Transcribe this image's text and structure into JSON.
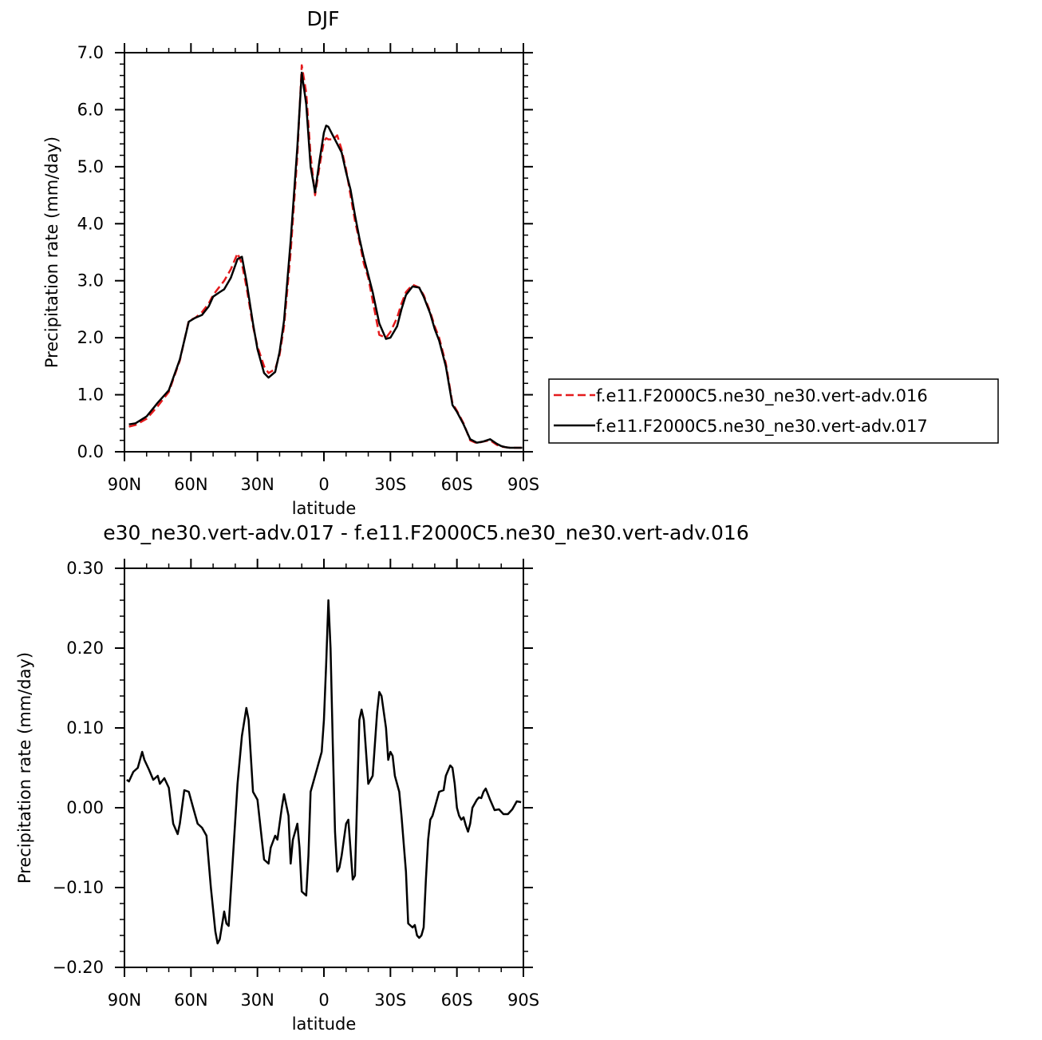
{
  "chart_data": [
    {
      "type": "line",
      "title": "DJF",
      "xlabel": "latitude",
      "ylabel": "Precipitation rate (mm/day)",
      "xlim": [
        90,
        -90
      ],
      "ylim": [
        0,
        7
      ],
      "xticks": [
        {
          "value": 90,
          "label": "90N"
        },
        {
          "value": 60,
          "label": "60N"
        },
        {
          "value": 30,
          "label": "30N"
        },
        {
          "value": 0,
          "label": "0"
        },
        {
          "value": -30,
          "label": "30S"
        },
        {
          "value": -60,
          "label": "60S"
        },
        {
          "value": -90,
          "label": "90S"
        }
      ],
      "yticks": [
        {
          "value": 0,
          "label": "0.0"
        },
        {
          "value": 1,
          "label": "1.0"
        },
        {
          "value": 2,
          "label": "2.0"
        },
        {
          "value": 3,
          "label": "3.0"
        },
        {
          "value": 4,
          "label": "4.0"
        },
        {
          "value": 5,
          "label": "5.0"
        },
        {
          "value": 6,
          "label": "6.0"
        },
        {
          "value": 7,
          "label": "7.0"
        }
      ],
      "legend_position": "right",
      "series": [
        {
          "name": "f.e11.F2000C5.ne30_ne30.vert-adv.016",
          "color": "#e41a1c",
          "dash": "dashed",
          "x": [
            88,
            85,
            80,
            75,
            70,
            65,
            61,
            58,
            55,
            52,
            50,
            47,
            45,
            42,
            39,
            37,
            35,
            32,
            30,
            27,
            25,
            22,
            20,
            18,
            15,
            12,
            10,
            8,
            6,
            4,
            2,
            0,
            -1,
            -2,
            -4,
            -6,
            -8,
            -10,
            -12,
            -14,
            -16,
            -18,
            -20,
            -22,
            -25,
            -28,
            -30,
            -33,
            -35,
            -37,
            -40,
            -43,
            -45,
            -48,
            -50,
            -52,
            -55,
            -58,
            -60,
            -63,
            -66,
            -69,
            -72,
            -75,
            -78,
            -80,
            -82,
            -84,
            -86,
            -88,
            -89.5
          ],
          "y": [
            0.44,
            0.47,
            0.58,
            0.8,
            1.05,
            1.6,
            2.3,
            2.35,
            2.45,
            2.6,
            2.75,
            2.9,
            3.0,
            3.2,
            3.48,
            3.3,
            2.9,
            2.2,
            1.85,
            1.5,
            1.38,
            1.45,
            1.7,
            2.2,
            3.5,
            5.2,
            6.78,
            6.3,
            5.2,
            4.5,
            5.0,
            5.45,
            5.5,
            5.48,
            5.48,
            5.55,
            5.3,
            4.95,
            4.5,
            4.05,
            3.7,
            3.3,
            3.05,
            2.65,
            2.05,
            2.0,
            2.1,
            2.35,
            2.6,
            2.8,
            2.93,
            2.88,
            2.75,
            2.45,
            2.2,
            2.0,
            1.55,
            0.85,
            0.72,
            0.5,
            0.2,
            0.15,
            0.18,
            0.2,
            0.12,
            0.09,
            0.08,
            0.07,
            0.07,
            0.07,
            0.07
          ]
        },
        {
          "name": "f.e11.F2000C5.ne30_ne30.vert-adv.017",
          "color": "#000000",
          "dash": "solid",
          "x": [
            88,
            85,
            80,
            75,
            70,
            65,
            61,
            58,
            55,
            52,
            50,
            47,
            45,
            42,
            39,
            37,
            35,
            32,
            30,
            27,
            25,
            22,
            20,
            18,
            15,
            12,
            10,
            8,
            6,
            4,
            2,
            0,
            -1,
            -2,
            -4,
            -6,
            -8,
            -10,
            -12,
            -14,
            -16,
            -18,
            -20,
            -22,
            -25,
            -28,
            -30,
            -33,
            -35,
            -37,
            -40,
            -43,
            -45,
            -48,
            -50,
            -52,
            -55,
            -58,
            -60,
            -63,
            -66,
            -69,
            -72,
            -75,
            -78,
            -80,
            -82,
            -84,
            -86,
            -88,
            -89.5
          ],
          "y": [
            0.48,
            0.5,
            0.62,
            0.86,
            1.08,
            1.62,
            2.28,
            2.35,
            2.4,
            2.55,
            2.72,
            2.8,
            2.85,
            3.05,
            3.38,
            3.42,
            3.0,
            2.25,
            1.8,
            1.38,
            1.3,
            1.4,
            1.75,
            2.3,
            3.7,
            5.35,
            6.65,
            6.1,
            5.0,
            4.55,
            5.1,
            5.6,
            5.72,
            5.7,
            5.55,
            5.4,
            5.25,
            4.9,
            4.6,
            4.15,
            3.75,
            3.4,
            3.1,
            2.8,
            2.25,
            1.98,
            2.0,
            2.2,
            2.5,
            2.75,
            2.9,
            2.88,
            2.72,
            2.42,
            2.15,
            1.95,
            1.5,
            0.82,
            0.7,
            0.48,
            0.22,
            0.16,
            0.18,
            0.22,
            0.14,
            0.1,
            0.08,
            0.07,
            0.07,
            0.07,
            0.07
          ]
        }
      ]
    },
    {
      "type": "line",
      "title": "e30_ne30.vert-adv.017 - f.e11.F2000C5.ne30_ne30.vert-adv.016",
      "xlabel": "latitude",
      "ylabel": "Precipitation rate (mm/day)",
      "xlim": [
        90,
        -90
      ],
      "ylim": [
        -0.2,
        0.3
      ],
      "xticks": [
        {
          "value": 90,
          "label": "90N"
        },
        {
          "value": 60,
          "label": "60N"
        },
        {
          "value": 30,
          "label": "30N"
        },
        {
          "value": 0,
          "label": "0"
        },
        {
          "value": -30,
          "label": "30S"
        },
        {
          "value": -60,
          "label": "60S"
        },
        {
          "value": -90,
          "label": "90S"
        }
      ],
      "yticks": [
        {
          "value": -0.2,
          "label": "−0.20"
        },
        {
          "value": -0.1,
          "label": "−0.10"
        },
        {
          "value": 0,
          "label": "0.00"
        },
        {
          "value": 0.1,
          "label": "0.10"
        },
        {
          "value": 0.2,
          "label": "0.20"
        },
        {
          "value": 0.3,
          "label": "0.30"
        }
      ],
      "series": [
        {
          "color": "#000000",
          "dash": "solid",
          "x": [
            89,
            88,
            86,
            84,
            82,
            81,
            79,
            77,
            75,
            74,
            72,
            70,
            68,
            66,
            65,
            63,
            61,
            59,
            57,
            55,
            53,
            51,
            49,
            48,
            47,
            45,
            44,
            43,
            41,
            39,
            37,
            35,
            34,
            32,
            31,
            30,
            28,
            27,
            25,
            24,
            22,
            21,
            19,
            18,
            16,
            15,
            14,
            12,
            11,
            10,
            8,
            7,
            6,
            4,
            3,
            1,
            0,
            -1,
            -2,
            -3,
            -4,
            -5,
            -6,
            -7,
            -8,
            -9,
            -10,
            -11,
            -13,
            -14,
            -16,
            -17,
            -18,
            -20,
            -22,
            -24,
            -25,
            -26,
            -28,
            -29,
            -30,
            -31,
            -32,
            -34,
            -35,
            -37,
            -38,
            -40,
            -41,
            -42,
            -43,
            -44,
            -45,
            -46,
            -47,
            -48,
            -49,
            -50,
            -52,
            -54,
            -55,
            -57,
            -58,
            -59,
            -60,
            -61,
            -62,
            -63,
            -64,
            -65,
            -66,
            -67,
            -69,
            -70,
            -71,
            -72,
            -73,
            -75,
            -77,
            -79,
            -81,
            -83,
            -85,
            -87,
            -89
          ],
          "y": [
            0.035,
            0.033,
            0.045,
            0.05,
            0.07,
            0.06,
            0.048,
            0.035,
            0.04,
            0.03,
            0.037,
            0.025,
            -0.02,
            -0.033,
            -0.02,
            0.022,
            0.02,
            0.0,
            -0.02,
            -0.025,
            -0.035,
            -0.1,
            -0.155,
            -0.17,
            -0.165,
            -0.13,
            -0.145,
            -0.148,
            -0.06,
            0.03,
            0.09,
            0.125,
            0.11,
            0.02,
            0.015,
            0.01,
            -0.04,
            -0.065,
            -0.07,
            -0.05,
            -0.035,
            -0.04,
            0.0,
            0.017,
            -0.01,
            -0.07,
            -0.04,
            -0.02,
            -0.05,
            -0.105,
            -0.11,
            -0.06,
            0.02,
            0.04,
            0.05,
            0.07,
            0.11,
            0.18,
            0.26,
            0.2,
            0.08,
            -0.03,
            -0.08,
            -0.075,
            -0.06,
            -0.04,
            -0.02,
            -0.015,
            -0.09,
            -0.085,
            0.11,
            0.123,
            0.11,
            0.03,
            0.04,
            0.12,
            0.145,
            0.14,
            0.1,
            0.06,
            0.07,
            0.065,
            0.04,
            0.02,
            -0.01,
            -0.08,
            -0.145,
            -0.15,
            -0.147,
            -0.16,
            -0.163,
            -0.16,
            -0.15,
            -0.09,
            -0.04,
            -0.015,
            -0.01,
            0.0,
            0.02,
            0.022,
            0.04,
            0.053,
            0.05,
            0.03,
            0.0,
            -0.01,
            -0.015,
            -0.012,
            -0.022,
            -0.03,
            -0.02,
            0.0,
            0.01,
            0.013,
            0.012,
            0.02,
            0.024,
            0.01,
            -0.003,
            -0.002,
            -0.008,
            -0.008,
            -0.002,
            0.008,
            0.007
          ]
        }
      ]
    }
  ]
}
